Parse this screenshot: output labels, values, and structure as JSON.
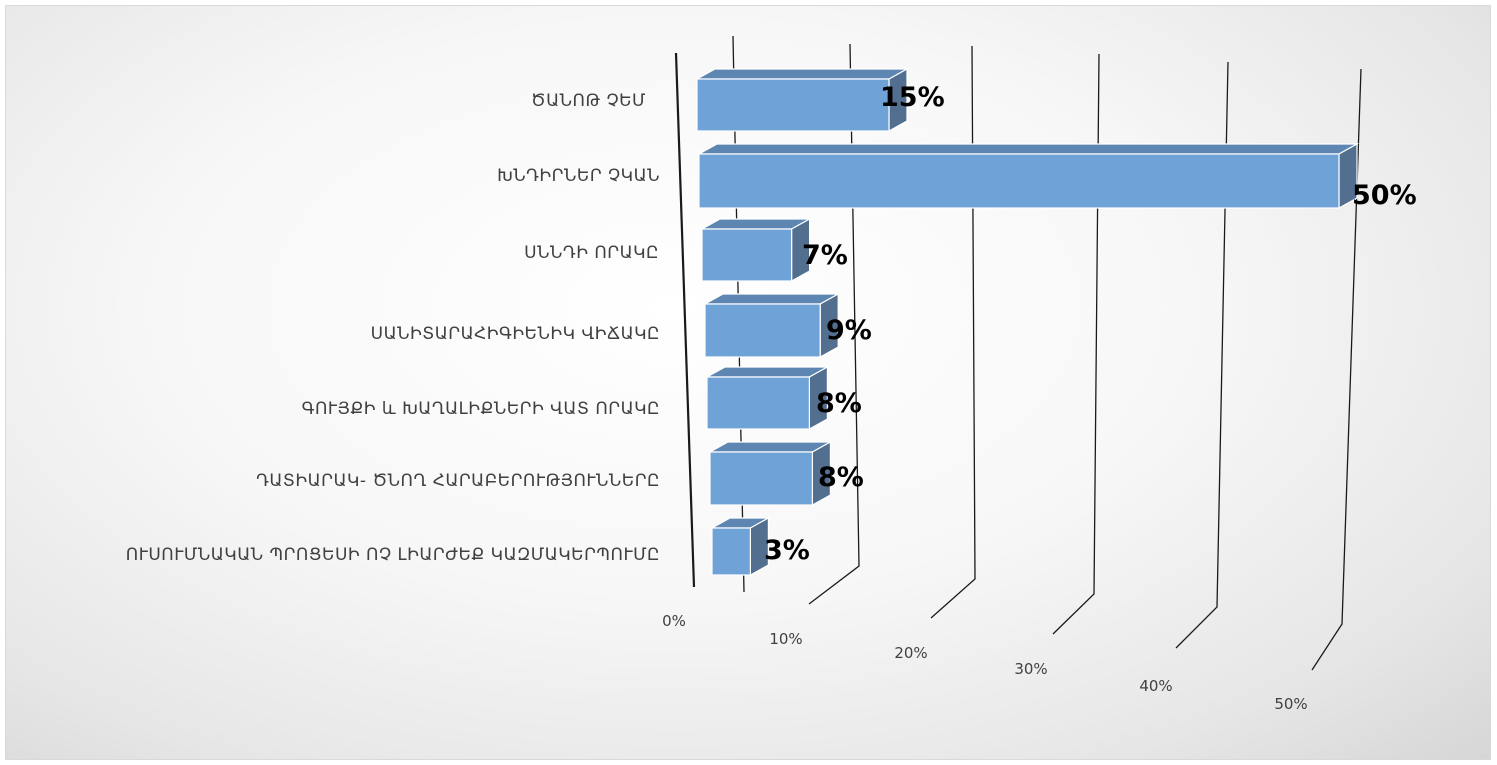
{
  "chart_data": {
    "type": "bar",
    "orientation": "horizontal",
    "style": "3d",
    "categories": [
      "ԾԱՆՈԹ ՉԵՄ",
      "ԽՆԴԻՐՆԵՐ ՉԿԱՆ",
      "ՍՆՆԴԻ ՈՐԱԿԸ",
      "ՍԱՆԻՏԱՐԱՀԻԳԻԵՆԻԿ ՎԻՃԱԿԸ",
      "ԳՈՒՅՔԻ և ԽԱՂԱԼԻՔՆԵՐԻ ՎԱՏ ՈՐԱԿԸ",
      "ԴԱՏԻԱՐԱԿ- ԾՆՈՂ ՀԱՐԱԲԵՐՈՒԹՅՈՒՆՆԵՐԸ",
      "ՈՒՍՈՒՄՆԱԿԱՆ ՊՐՈՑԵՍԻ ՈՉ ԼԻԱՐԺԵՔ ԿԱԶՄԱԿԵՐՊՈՒՄԸ"
    ],
    "values": [
      15,
      50,
      7,
      9,
      8,
      8,
      3
    ],
    "data_labels": [
      "15%",
      "50%",
      "7%",
      "9%",
      "8%",
      "8%",
      "3%"
    ],
    "x_ticks": [
      "0%",
      "10%",
      "20%",
      "30%",
      "40%",
      "50%"
    ],
    "xlim": [
      0,
      50
    ],
    "grid": true,
    "legend": "none",
    "title": "",
    "xlabel": "",
    "ylabel": "",
    "colors": {
      "bar_front": "#6fa3d8",
      "bar_top": "#5e86b2",
      "bar_side": "#536f8f",
      "bar_edge": "#ffffff",
      "grid": "#1a1a1a",
      "text": "#404040",
      "data_label": "#000000"
    }
  }
}
